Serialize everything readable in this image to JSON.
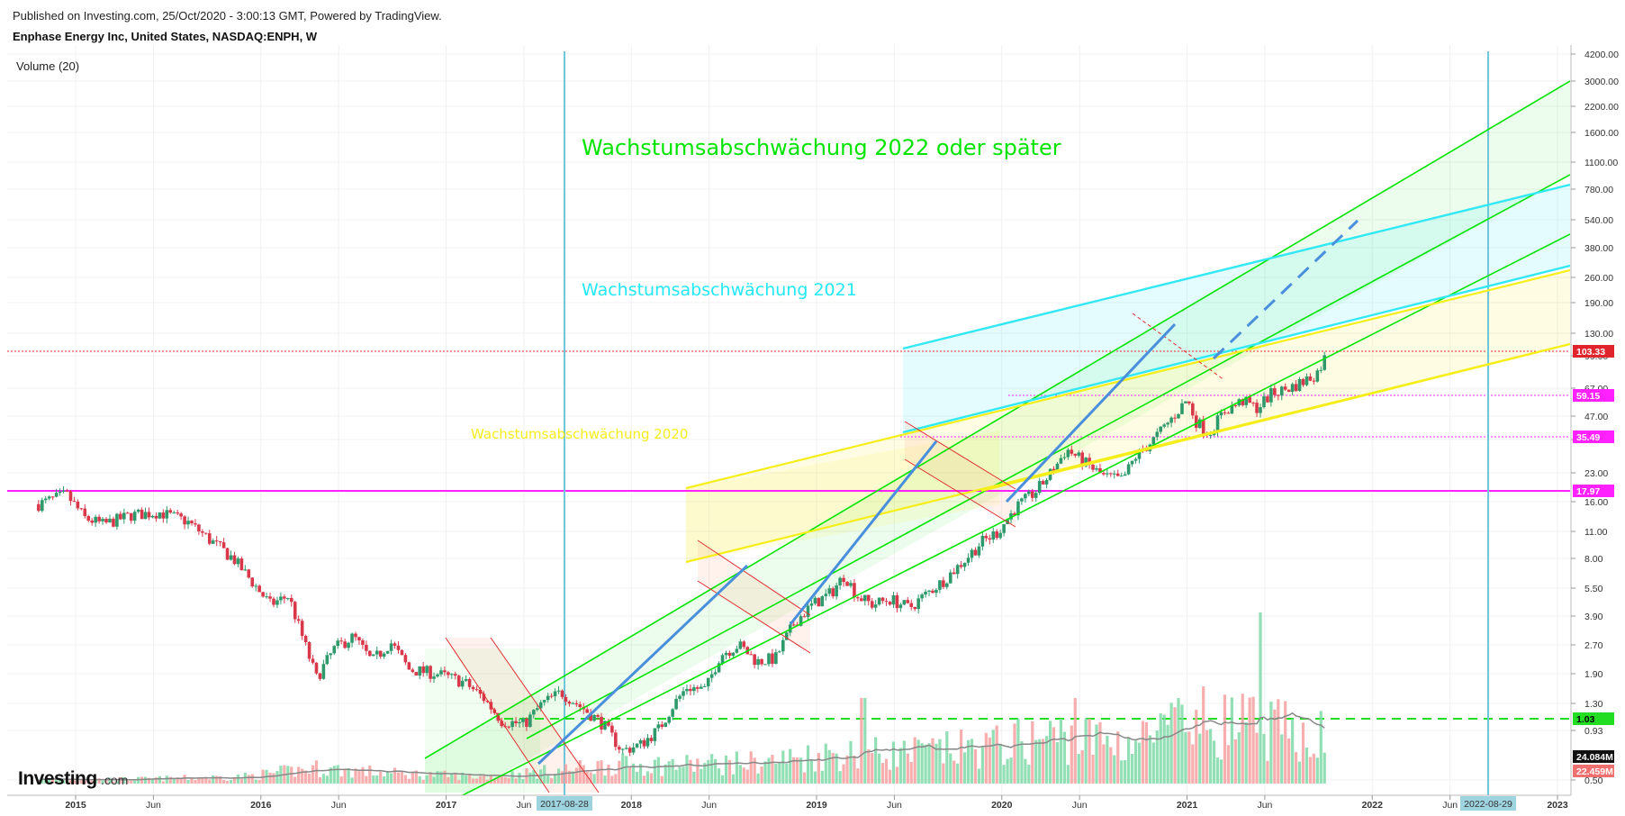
{
  "header": {
    "published": "Published on Investing.com, 25/Oct/2020 - 3:00:13 GMT, Powered by TradingView.",
    "symbol": "Enphase Energy Inc, United States, NASDAQ:ENPH, W",
    "indicator": "Volume (20)"
  },
  "logo": {
    "main": "Investing",
    "suffix": ".com"
  },
  "colors": {
    "green": "#00e400",
    "cyan": "#33e8f5",
    "yellow": "#f5ee1a",
    "magenta": "#ff22ff",
    "blue": "#4a8fdc",
    "red": "#e03030",
    "vline": "#6ec6da",
    "upCandle": "#2e9a6b",
    "downCandle": "#d9374a"
  },
  "chart_data": {
    "type": "candlestick",
    "scale": "log",
    "grid": true,
    "y_ticks": [
      "4200.00",
      "3000.00",
      "2200.00",
      "1600.00",
      "1100.00",
      "780.00",
      "540.00",
      "380.00",
      "260.00",
      "190.00",
      "130.00",
      "99.00",
      "67.00",
      "47.00",
      "35.00",
      "23.00",
      "16.00",
      "11.00",
      "8.00",
      "5.50",
      "3.90",
      "2.70",
      "1.90",
      "1.30",
      "0.93",
      "0.50"
    ],
    "x_ticks": [
      "2015",
      "Jun",
      "2016",
      "Jun",
      "2017",
      "Jun",
      "2018",
      "Jun",
      "2019",
      "Jun",
      "2020",
      "Jun",
      "2021",
      "Jun",
      "2022",
      "Jun",
      "2023"
    ],
    "highlighted_dates": [
      "2017-08-28",
      "2022-08-29"
    ],
    "price_labels": [
      {
        "value": "103.33",
        "bg": "#e0242c",
        "fg": "#ffffff"
      },
      {
        "value": "59.15",
        "bg": "#ff22ff",
        "fg": "#ffffff"
      },
      {
        "value": "35.49",
        "bg": "#ff22ff",
        "fg": "#ffffff"
      },
      {
        "value": "17.97",
        "bg": "#ff22ff",
        "fg": "#ffffff"
      },
      {
        "value": "1.03",
        "bg": "#22dd22",
        "fg": "#000000"
      },
      {
        "value": "24.084M",
        "bg": "#111111",
        "fg": "#ffffff"
      },
      {
        "value": "22.459M",
        "bg": "#f07070",
        "fg": "#ffffff"
      }
    ],
    "horizontal_levels": [
      {
        "value": 103.33,
        "style": "dotted",
        "color": "#e03030"
      },
      {
        "value": 59.15,
        "style": "dotted",
        "color": "#ff22ff"
      },
      {
        "value": 35.49,
        "style": "dotted",
        "color": "#ff22ff"
      },
      {
        "value": 17.97,
        "style": "solid",
        "color": "#ff22ff"
      },
      {
        "value": 1.03,
        "style": "dashed",
        "color": "#22dd22"
      }
    ],
    "annotations": [
      {
        "text": "Wachstumsabschwächung 2022 oder später",
        "color": "#00e400"
      },
      {
        "text": "Wachstumsabschwächung 2021",
        "color": "#22e8f5"
      },
      {
        "text": "Wachstumsabschwächung 2020",
        "color": "#f5ee1a"
      }
    ],
    "price_path": [
      [
        2014.8,
        15.5
      ],
      [
        2014.95,
        17.5
      ],
      [
        2015.05,
        13
      ],
      [
        2015.15,
        12
      ],
      [
        2015.3,
        13.5
      ],
      [
        2015.45,
        14
      ],
      [
        2015.6,
        12.5
      ],
      [
        2015.75,
        9.5
      ],
      [
        2015.85,
        8
      ],
      [
        2015.95,
        6
      ],
      [
        2016.05,
        4.5
      ],
      [
        2016.15,
        5
      ],
      [
        2016.25,
        2.5
      ],
      [
        2016.3,
        1.8
      ],
      [
        2016.4,
        2.6
      ],
      [
        2016.5,
        3
      ],
      [
        2016.6,
        2.2
      ],
      [
        2016.7,
        2.8
      ],
      [
        2016.8,
        2.0
      ],
      [
        2016.95,
        1.9
      ],
      [
        2017.1,
        1.7
      ],
      [
        2017.2,
        1.4
      ],
      [
        2017.3,
        1.05
      ],
      [
        2017.42,
        1.0
      ],
      [
        2017.52,
        1.3
      ],
      [
        2017.62,
        1.5
      ],
      [
        2017.75,
        1.2
      ],
      [
        2017.85,
        1.0
      ],
      [
        2017.95,
        0.72
      ],
      [
        2018.05,
        0.78
      ],
      [
        2018.15,
        0.95
      ],
      [
        2018.22,
        1.25
      ],
      [
        2018.3,
        1.6
      ],
      [
        2018.4,
        1.55
      ],
      [
        2018.48,
        2.4
      ],
      [
        2018.58,
        2.7
      ],
      [
        2018.68,
        2.2
      ],
      [
        2018.78,
        2.3
      ],
      [
        2018.88,
        3.6
      ],
      [
        2018.98,
        4.5
      ],
      [
        2019.08,
        5.2
      ],
      [
        2019.15,
        6.5
      ],
      [
        2019.22,
        5.0
      ],
      [
        2019.3,
        4.5
      ],
      [
        2019.4,
        4.8
      ],
      [
        2019.5,
        4.3
      ],
      [
        2019.58,
        5.0
      ],
      [
        2019.68,
        6.0
      ],
      [
        2019.78,
        7.5
      ],
      [
        2019.88,
        9.5
      ],
      [
        2019.98,
        11
      ],
      [
        2020.08,
        15
      ],
      [
        2020.18,
        18
      ],
      [
        2020.28,
        24
      ],
      [
        2020.35,
        31
      ],
      [
        2020.45,
        26
      ],
      [
        2020.55,
        22
      ],
      [
        2020.65,
        21
      ],
      [
        2020.72,
        28
      ],
      [
        2020.82,
        35
      ],
      [
        2020.92,
        46
      ],
      [
        2021.0,
        58
      ],
      [
        2021.05,
        44
      ],
      [
        2021.12,
        38
      ],
      [
        2021.2,
        50
      ],
      [
        2021.3,
        57
      ],
      [
        2021.38,
        52
      ],
      [
        2021.45,
        62
      ],
      [
        2021.55,
        67
      ],
      [
        2021.62,
        72
      ],
      [
        2021.7,
        80
      ],
      [
        2021.76,
        103.33
      ]
    ],
    "volume_path": [
      [
        2014.8,
        0.05
      ],
      [
        2015.3,
        0.05
      ],
      [
        2015.9,
        0.08
      ],
      [
        2016.3,
        0.18
      ],
      [
        2016.7,
        0.12
      ],
      [
        2017.2,
        0.08
      ],
      [
        2017.6,
        0.15
      ],
      [
        2017.9,
        0.22
      ],
      [
        2018.3,
        0.22
      ],
      [
        2018.7,
        0.25
      ],
      [
        2019.1,
        0.35
      ],
      [
        2019.5,
        0.35
      ],
      [
        2019.9,
        0.42
      ],
      [
        2020.3,
        0.55
      ],
      [
        2020.7,
        0.48
      ],
      [
        2021.1,
        0.72
      ],
      [
        2021.4,
        0.65
      ],
      [
        2021.76,
        0.55
      ]
    ]
  }
}
